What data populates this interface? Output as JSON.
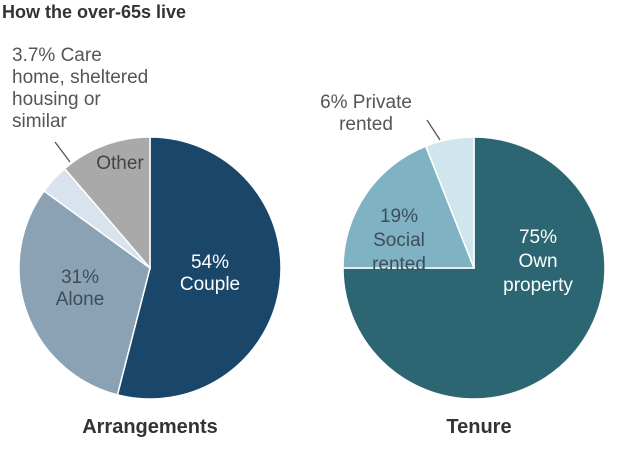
{
  "title": "How the over-65s live",
  "chart_data": [
    {
      "type": "pie",
      "title": "Arrangements",
      "slices": [
        {
          "label_lines": [
            "54%",
            "Couple"
          ],
          "value": 54,
          "color": "#1a4669",
          "text_color": "#ffffff"
        },
        {
          "label_lines": [
            "31%",
            "Alone"
          ],
          "value": 31,
          "color": "#8aa2b4",
          "text_color": "#3e4d59"
        },
        {
          "label_lines": [
            "3.7% Care",
            "home, sheltered",
            "housing or",
            "similar"
          ],
          "value": 3.7,
          "color": "#d8e3ed",
          "text_color": "#555555"
        },
        {
          "label_lines": [
            "Other"
          ],
          "value": 11.3,
          "color": "#a9a9a9",
          "text_color": "#444444"
        }
      ]
    },
    {
      "type": "pie",
      "title": "Tenure",
      "slices": [
        {
          "label_lines": [
            "75%",
            "Own",
            "property"
          ],
          "value": 75,
          "color": "#2b6672",
          "text_color": "#ffffff"
        },
        {
          "label_lines": [
            "19%",
            "Social",
            "rented"
          ],
          "value": 19,
          "color": "#7fb3c3",
          "text_color": "#3e4d59"
        },
        {
          "label_lines": [
            "6% Private",
            "rented"
          ],
          "value": 6,
          "color": "#cfe6ec",
          "text_color": "#555555"
        }
      ]
    }
  ]
}
